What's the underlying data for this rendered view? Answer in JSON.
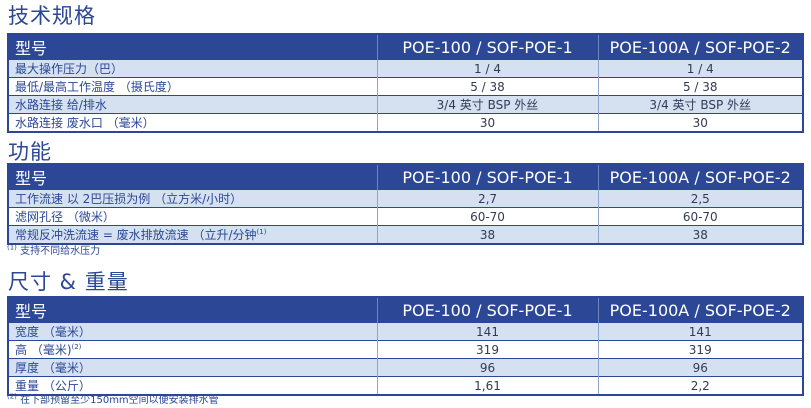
{
  "sections": [
    {
      "title": "技术规格",
      "header": [
        "型号",
        "POE-100 / SOF-POE-1",
        "POE-100A / SOF-POE-2"
      ],
      "rows": [
        [
          "最大操作压力（巴）",
          "1 / 4",
          "1 / 4"
        ],
        [
          "最低/最高工作温度 （摄氏度）",
          "5 / 38",
          "5 / 38"
        ],
        [
          "水路连接 给/排水",
          "3/4 英寸 BSP 外丝",
          "3/4 英寸 BSP 外丝"
        ],
        [
          "水路连接 废水口 （毫米）",
          "30",
          "30"
        ]
      ]
    },
    {
      "title": "功能",
      "header": [
        "型号",
        "POE-100 / SOF-POE-1",
        "POE-100A / SOF-POE-2"
      ],
      "rows": [
        [
          "工作流速 以 2巴压损为例 （立方米/小时）",
          "2,7",
          "2,5"
        ],
        [
          "滤网孔径 （微米）",
          "60-70",
          "60-70"
        ],
        [
          "常规反冲洗流速 = 废水排放流速 （立升/分钟",
          "38",
          "38"
        ]
      ],
      "row3_sup": "(1)",
      "footnote_mark": "(1)",
      "footnote": "支持不同给水压力"
    },
    {
      "title": "尺寸 & 重量",
      "header": [
        "型号",
        "POE-100 / SOF-POE-1",
        "POE-100A / SOF-POE-2"
      ],
      "rows": [
        [
          "宽度 （毫米）",
          "141",
          "141"
        ],
        [
          "高 （毫米)",
          "319",
          "319"
        ],
        [
          "厚度 （毫米）",
          "96",
          "96"
        ],
        [
          "重量 （公斤）",
          "1,61",
          "2,2"
        ]
      ],
      "row2_sup": "(2)",
      "footnote_mark": "(2)",
      "footnote": "在下部预留至少150mm空间以便安装排水管"
    }
  ]
}
